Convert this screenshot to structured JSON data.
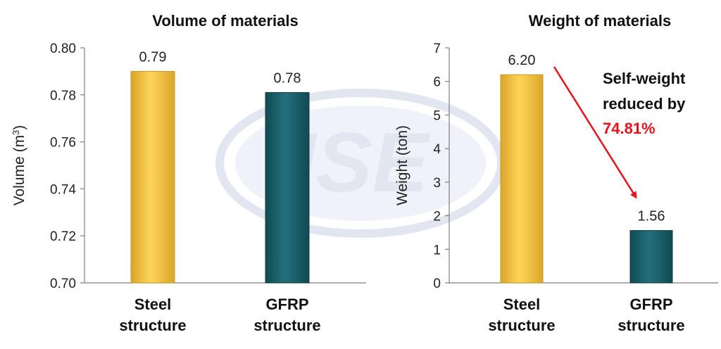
{
  "colors": {
    "steel": "#f2c13c",
    "gfrp": "#1d6470",
    "arrow": "#e8121a",
    "axis": "#7f7f7f",
    "watermark": "#c9d2e6"
  },
  "watermark": {
    "logo_text": "ISE"
  },
  "chart_data": [
    {
      "type": "bar",
      "title": "Volume of materials",
      "ylabel": "Volume (m3)",
      "ylabel_main": "Volume (m",
      "ylabel_sup": "3",
      "ylabel_end": ")",
      "ylim": [
        0.7,
        0.8
      ],
      "yticks": [
        "0.70",
        "0.72",
        "0.74",
        "0.76",
        "0.78",
        "0.80"
      ],
      "ytick_values": [
        0.7,
        0.72,
        0.74,
        0.76,
        0.78,
        0.8
      ],
      "categories": [
        {
          "line1": "Steel",
          "line2": "structure"
        },
        {
          "line1": "GFRP",
          "line2": "structure"
        }
      ],
      "values": [
        0.79,
        0.781
      ],
      "labels": [
        "0.79",
        "0.78"
      ]
    },
    {
      "type": "bar",
      "title": "Weight of materials",
      "ylabel": "Weight (ton)",
      "ylim": [
        0,
        7
      ],
      "yticks": [
        "0",
        "1",
        "2",
        "3",
        "4",
        "5",
        "6",
        "7"
      ],
      "ytick_values": [
        0,
        1,
        2,
        3,
        4,
        5,
        6,
        7
      ],
      "categories": [
        {
          "line1": "Steel",
          "line2": "structure"
        },
        {
          "line1": "GFRP",
          "line2": "structure"
        }
      ],
      "values": [
        6.2,
        1.56
      ],
      "labels": [
        "6.20",
        "1.56"
      ],
      "annotation": {
        "line1": "Self-weight",
        "line2": "reduced by",
        "line3": "74.81%"
      }
    }
  ]
}
